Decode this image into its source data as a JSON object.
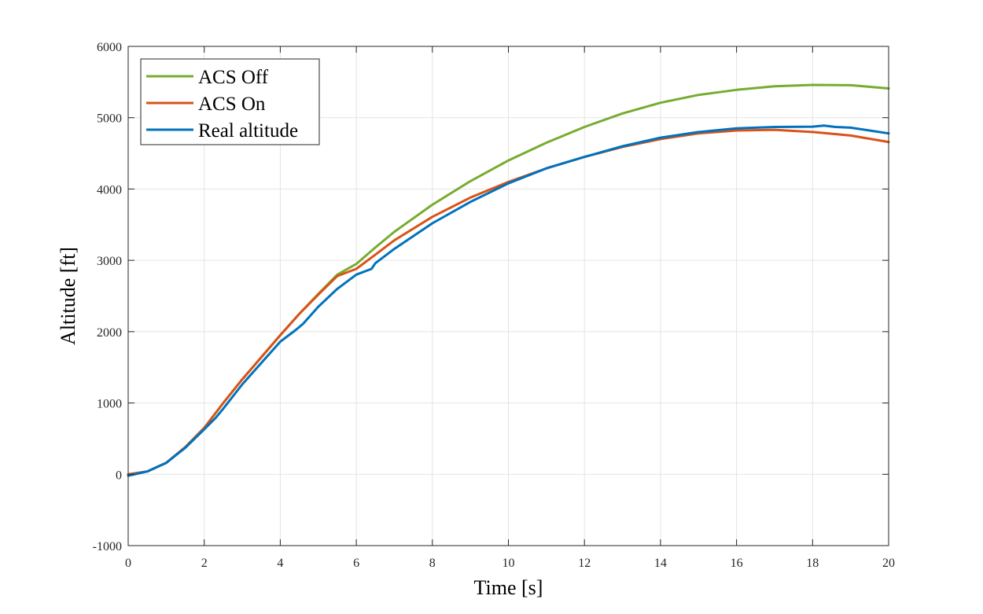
{
  "chart_data": {
    "type": "line",
    "title": "",
    "xlabel": "Time [s]",
    "ylabel": "Altitude [ft]",
    "xlim": [
      0,
      20
    ],
    "ylim": [
      -1000,
      6000
    ],
    "xticks": [
      0,
      2,
      4,
      6,
      8,
      10,
      12,
      14,
      16,
      18,
      20
    ],
    "yticks": [
      -1000,
      0,
      1000,
      2000,
      3000,
      4000,
      5000,
      6000
    ],
    "grid": true,
    "legend_position": "top-left",
    "series": [
      {
        "name": "ACS Off",
        "color": "#77ac30",
        "x": [
          0,
          0.5,
          1,
          1.5,
          2,
          2.5,
          3,
          3.5,
          4,
          4.5,
          5,
          5.5,
          6,
          6.5,
          7,
          8,
          9,
          10,
          11,
          12,
          13,
          14,
          15,
          16,
          17,
          18,
          19,
          20
        ],
        "y": [
          0,
          40,
          160,
          380,
          650,
          1000,
          1330,
          1640,
          1950,
          2250,
          2530,
          2800,
          2950,
          3180,
          3400,
          3780,
          4110,
          4400,
          4650,
          4870,
          5060,
          5210,
          5320,
          5390,
          5440,
          5460,
          5455,
          5410
        ]
      },
      {
        "name": "ACS On",
        "color": "#d95319",
        "x": [
          0,
          0.5,
          1,
          1.5,
          2,
          2.5,
          3,
          3.5,
          4,
          4.5,
          5,
          5.5,
          6,
          6.5,
          7,
          8,
          9,
          10,
          11,
          12,
          13,
          14,
          15,
          16,
          17,
          18,
          19,
          20
        ],
        "y": [
          0,
          40,
          160,
          380,
          650,
          1000,
          1330,
          1640,
          1950,
          2250,
          2520,
          2780,
          2880,
          3080,
          3280,
          3610,
          3880,
          4100,
          4290,
          4450,
          4590,
          4700,
          4780,
          4820,
          4830,
          4800,
          4750,
          4660
        ]
      },
      {
        "name": "Real altitude",
        "color": "#0072bd",
        "x": [
          0,
          0.5,
          1,
          1.5,
          2,
          2.3,
          2.5,
          3,
          3.5,
          4,
          4.4,
          4.6,
          5,
          5.5,
          6,
          6.4,
          6.5,
          7,
          8,
          9,
          10,
          11,
          12,
          13,
          14,
          15,
          16,
          17,
          18,
          18.3,
          18.6,
          19,
          19.5,
          20
        ],
        "y": [
          -20,
          40,
          160,
          370,
          630,
          790,
          920,
          1260,
          1560,
          1860,
          2020,
          2110,
          2350,
          2600,
          2800,
          2880,
          2960,
          3160,
          3520,
          3820,
          4080,
          4290,
          4450,
          4600,
          4720,
          4800,
          4850,
          4870,
          4875,
          4890,
          4870,
          4860,
          4820,
          4780
        ]
      }
    ]
  }
}
